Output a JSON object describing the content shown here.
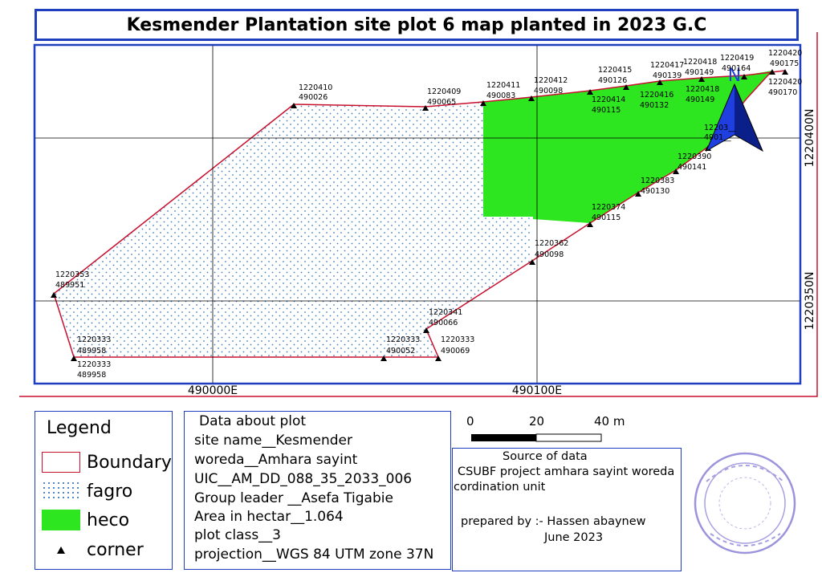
{
  "title": "Kesmender Plantation site plot 6 map planted in 2023 G.C",
  "grid_labels": {
    "x1": "490000E",
    "x2": "490100E",
    "y1": "1220400N",
    "y2": "1220350N"
  },
  "north_label": "N",
  "corners": [
    {
      "n": "1220410",
      "e": "490026"
    },
    {
      "n": "1220409",
      "e": "490065"
    },
    {
      "n": "1220411",
      "e": "490083"
    },
    {
      "n": "1220412",
      "e": "490098"
    },
    {
      "n": "1220414",
      "e": "490115"
    },
    {
      "n": "1220415",
      "e": "490126"
    },
    {
      "n": "1220416",
      "e": "490132"
    },
    {
      "n": "1220417",
      "e": "490139"
    },
    {
      "n": "1220418",
      "e": "490149"
    },
    {
      "n": "1220418",
      "e": "490149"
    },
    {
      "n": "1220419",
      "e": "490164"
    },
    {
      "n": "1220420",
      "e": "490175"
    },
    {
      "n": "1220420",
      "e": "490170"
    },
    {
      "n": "12203__",
      "e": "4901__"
    },
    {
      "n": "1220390",
      "e": "490141"
    },
    {
      "n": "1220383",
      "e": "490130"
    },
    {
      "n": "1220374",
      "e": "490115"
    },
    {
      "n": "1220362",
      "e": "490098"
    },
    {
      "n": "1220353",
      "e": "489951"
    },
    {
      "n": "1220341",
      "e": "490066"
    },
    {
      "n": "1220333",
      "e": "490069"
    },
    {
      "n": "1220333",
      "e": "490052"
    },
    {
      "n": "1220333",
      "e": "489958"
    },
    {
      "n": "1220333",
      "e": "489958"
    }
  ],
  "legend": {
    "title": "Legend",
    "items": [
      {
        "label": "Boundary",
        "color": "#c8102e"
      },
      {
        "label": "fagro",
        "color": "#3d7fc1"
      },
      {
        "label": "heco",
        "color": "#2ee620"
      },
      {
        "label": "corner",
        "color": "#000000"
      }
    ]
  },
  "plot_info": {
    "heading": "Data about plot",
    "site_name": "site name__Kesmender",
    "woreda": "woreda__Amhara sayint",
    "uic": "UIC__AM_DD_088_35_2033_006",
    "group_leader": "Group leader __Asefa Tigabie",
    "area": "Area in hectar__1.064",
    "plot_class": "plot class__3",
    "projection": "projection__WGS 84 UTM zone 37N"
  },
  "scale_bar": {
    "labels": [
      "0",
      "20",
      "40 m"
    ]
  },
  "source": {
    "heading": "Source of data",
    "line1": "CSUBF project amhara sayint woreda",
    "line2": "cordination unit",
    "prepared": "prepared by :- Hassen abaynew",
    "date": "June 2023"
  },
  "colors": {
    "boundary": "#c8102e",
    "heco": "#2ee620",
    "fagro_dot": "#3d7fc1",
    "frame": "#1f3fbf"
  }
}
